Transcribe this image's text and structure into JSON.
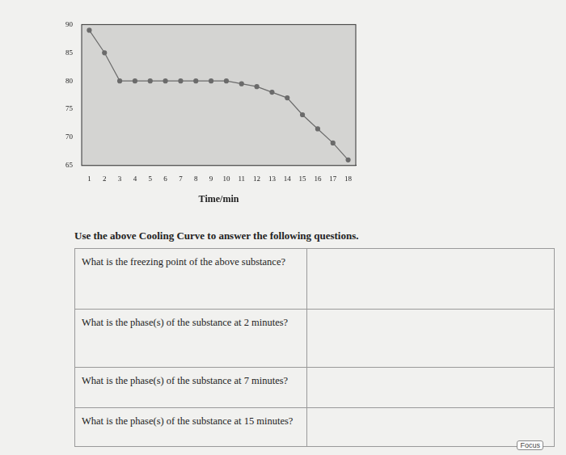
{
  "chart_data": {
    "type": "line",
    "x_label": "Time/min",
    "x": [
      1,
      2,
      3,
      4,
      5,
      6,
      7,
      8,
      9,
      10,
      11,
      12,
      13,
      14,
      15,
      16,
      17,
      18
    ],
    "values": [
      89,
      85,
      80,
      80,
      80,
      80,
      80,
      80,
      80,
      80,
      79.5,
      79,
      78,
      77,
      74,
      71.5,
      69,
      66
    ],
    "xlim": [
      0.5,
      18.5
    ],
    "xticks": [
      1,
      2,
      3,
      4,
      5,
      6,
      7,
      8,
      9,
      10,
      11,
      12,
      13,
      14,
      15,
      16,
      17,
      18
    ],
    "ylim": [
      65,
      90
    ],
    "yticks": [
      65,
      70,
      75,
      80,
      85,
      90
    ],
    "color": "#6b6b6b",
    "marker": "circle",
    "grid": false
  },
  "instruction": "Use the above Cooling Curve to answer the following questions.",
  "questions": [
    "What is the freezing point of the above substance?",
    "What is the phase(s) of the substance at 2 minutes?",
    "What is the phase(s) of the substance at 7 minutes?",
    "What is the phase(s) of the substance at 15 minutes?"
  ],
  "footer": "Focus"
}
